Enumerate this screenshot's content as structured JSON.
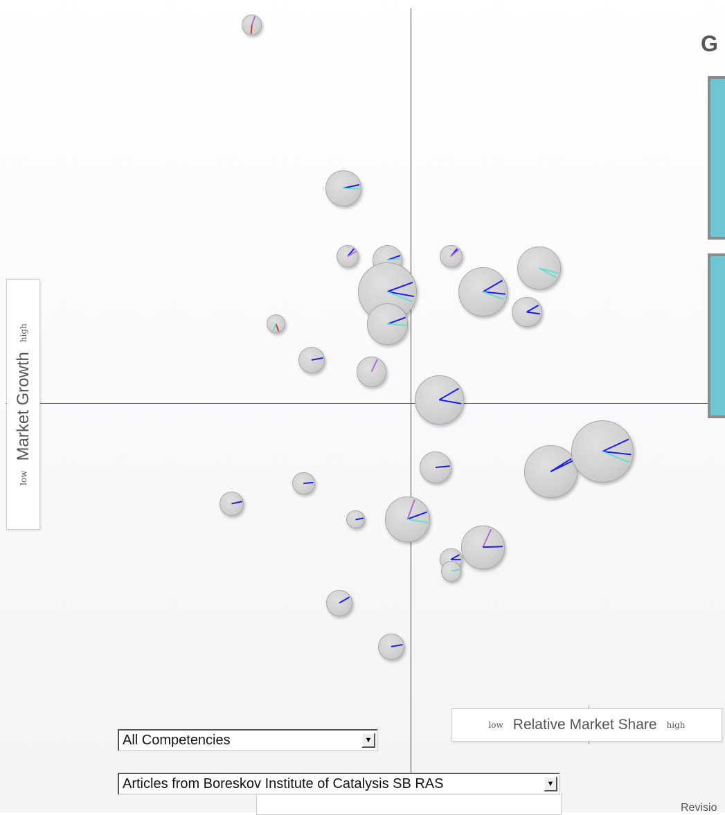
{
  "right_panel": {
    "title": "G"
  },
  "axes": {
    "y_title": "Market Growth",
    "y_low": "low",
    "y_high": "high",
    "x_title": "Relative Market Share",
    "x_low": "low",
    "x_high": "high"
  },
  "filters": {
    "competency_value": "All Competencies",
    "source_value": "Articles from Boreskov Institute of Catalysis SB RAS"
  },
  "footer": {
    "text": "Revisio"
  },
  "colors": {
    "bubble_fill": "#d0d0d0",
    "series_blue": "#1a1aff",
    "series_cyan": "#66e0d0",
    "series_violet": "#b06cd8",
    "series_red": "#e03030",
    "panel_fill": "#6ec6d4"
  },
  "chart_data": {
    "type": "scatter",
    "title": "",
    "xlabel": "Relative Market Share",
    "ylabel": "Market Growth",
    "x_range": [
      -1,
      1
    ],
    "y_range": [
      -1,
      1
    ],
    "quadrant_split": [
      0,
      0
    ],
    "points": [
      {
        "x": -0.4,
        "y": 0.95,
        "size": 0.1,
        "slices": [
          {
            "angle": 20,
            "color": "#b06cd8"
          },
          {
            "angle": 185,
            "color": "#e03030"
          }
        ]
      },
      {
        "x": -0.17,
        "y": 0.54,
        "size": 0.18,
        "slices": [
          {
            "angle": 78,
            "color": "#1a1aff"
          },
          {
            "angle": 92,
            "color": "#66e0d0"
          }
        ]
      },
      {
        "x": -0.16,
        "y": 0.37,
        "size": 0.11,
        "slices": [
          {
            "angle": 40,
            "color": "#1a1aff"
          },
          {
            "angle": 60,
            "color": "#b06cd8"
          }
        ]
      },
      {
        "x": -0.06,
        "y": 0.36,
        "size": 0.15,
        "slices": [
          {
            "angle": 70,
            "color": "#1a1aff"
          },
          {
            "angle": 84,
            "color": "#66e0d0"
          }
        ]
      },
      {
        "x": -0.06,
        "y": 0.28,
        "size": 0.3,
        "slices": [
          {
            "angle": 70,
            "color": "#1a1aff"
          },
          {
            "angle": 100,
            "color": "#1a1aff"
          },
          {
            "angle": 112,
            "color": "#66e0d0"
          }
        ]
      },
      {
        "x": -0.06,
        "y": 0.2,
        "size": 0.21,
        "slices": [
          {
            "angle": 70,
            "color": "#1a1aff"
          },
          {
            "angle": 94,
            "color": "#66e0d0"
          }
        ]
      },
      {
        "x": 0.1,
        "y": 0.37,
        "size": 0.11,
        "slices": [
          {
            "angle": 40,
            "color": "#1a1aff"
          },
          {
            "angle": 50,
            "color": "#b06cd8"
          }
        ]
      },
      {
        "x": 0.18,
        "y": 0.28,
        "size": 0.25,
        "slices": [
          {
            "angle": 60,
            "color": "#1a1aff"
          },
          {
            "angle": 96,
            "color": "#1a1aff"
          },
          {
            "angle": 110,
            "color": "#66e0d0"
          }
        ]
      },
      {
        "x": 0.32,
        "y": 0.34,
        "size": 0.22,
        "slices": [
          {
            "angle": 105,
            "color": "#66e0d0"
          },
          {
            "angle": 118,
            "color": "#66e0d0"
          }
        ]
      },
      {
        "x": 0.29,
        "y": 0.23,
        "size": 0.15,
        "slices": [
          {
            "angle": 60,
            "color": "#1a1aff"
          },
          {
            "angle": 98,
            "color": "#1a1aff"
          }
        ]
      },
      {
        "x": -0.34,
        "y": 0.2,
        "size": 0.09,
        "slices": [
          {
            "angle": 160,
            "color": "#e03030"
          },
          {
            "angle": 200,
            "color": "#66e0d0"
          }
        ]
      },
      {
        "x": -0.25,
        "y": 0.11,
        "size": 0.13,
        "slices": [
          {
            "angle": 80,
            "color": "#1a1aff"
          }
        ]
      },
      {
        "x": -0.1,
        "y": 0.08,
        "size": 0.15,
        "slices": [
          {
            "angle": 25,
            "color": "#b06cd8"
          }
        ]
      },
      {
        "x": 0.07,
        "y": 0.01,
        "size": 0.25,
        "slices": [
          {
            "angle": 60,
            "color": "#1a1aff"
          },
          {
            "angle": 100,
            "color": "#1a1aff"
          }
        ]
      },
      {
        "x": 0.35,
        "y": -0.17,
        "size": 0.27,
        "slices": [
          {
            "angle": 58,
            "color": "#1a1aff"
          },
          {
            "angle": 64,
            "color": "#1a1aff"
          }
        ]
      },
      {
        "x": 0.48,
        "y": -0.12,
        "size": 0.32,
        "slices": [
          {
            "angle": 65,
            "color": "#1a1aff"
          },
          {
            "angle": 96,
            "color": "#1a1aff"
          },
          {
            "angle": 112,
            "color": "#66e0d0"
          }
        ]
      },
      {
        "x": 0.06,
        "y": -0.16,
        "size": 0.16,
        "slices": [
          {
            "angle": 85,
            "color": "#1a1aff"
          }
        ]
      },
      {
        "x": -0.27,
        "y": -0.2,
        "size": 0.11,
        "slices": [
          {
            "angle": 85,
            "color": "#1a1aff"
          }
        ]
      },
      {
        "x": -0.45,
        "y": -0.25,
        "size": 0.12,
        "slices": [
          {
            "angle": 78,
            "color": "#1a1aff"
          }
        ]
      },
      {
        "x": -0.14,
        "y": -0.29,
        "size": 0.09,
        "slices": [
          {
            "angle": 80,
            "color": "#1a1aff"
          }
        ]
      },
      {
        "x": -0.01,
        "y": -0.29,
        "size": 0.23,
        "slices": [
          {
            "angle": 20,
            "color": "#b06cd8"
          },
          {
            "angle": 70,
            "color": "#1a1aff"
          },
          {
            "angle": 100,
            "color": "#66e0d0"
          }
        ]
      },
      {
        "x": 0.1,
        "y": -0.39,
        "size": 0.11,
        "slices": [
          {
            "angle": 60,
            "color": "#1a1aff"
          },
          {
            "angle": 90,
            "color": "#1a1aff"
          }
        ]
      },
      {
        "x": 0.1,
        "y": -0.42,
        "size": 0.1,
        "slices": [
          {
            "angle": 80,
            "color": "#66e0d0"
          }
        ]
      },
      {
        "x": 0.18,
        "y": -0.36,
        "size": 0.22,
        "slices": [
          {
            "angle": 25,
            "color": "#b06cd8"
          },
          {
            "angle": 88,
            "color": "#1a1aff"
          }
        ]
      },
      {
        "x": -0.18,
        "y": -0.5,
        "size": 0.13,
        "slices": [
          {
            "angle": 60,
            "color": "#1a1aff"
          }
        ]
      },
      {
        "x": -0.05,
        "y": -0.61,
        "size": 0.13,
        "slices": [
          {
            "angle": 80,
            "color": "#1a1aff"
          }
        ]
      }
    ]
  }
}
